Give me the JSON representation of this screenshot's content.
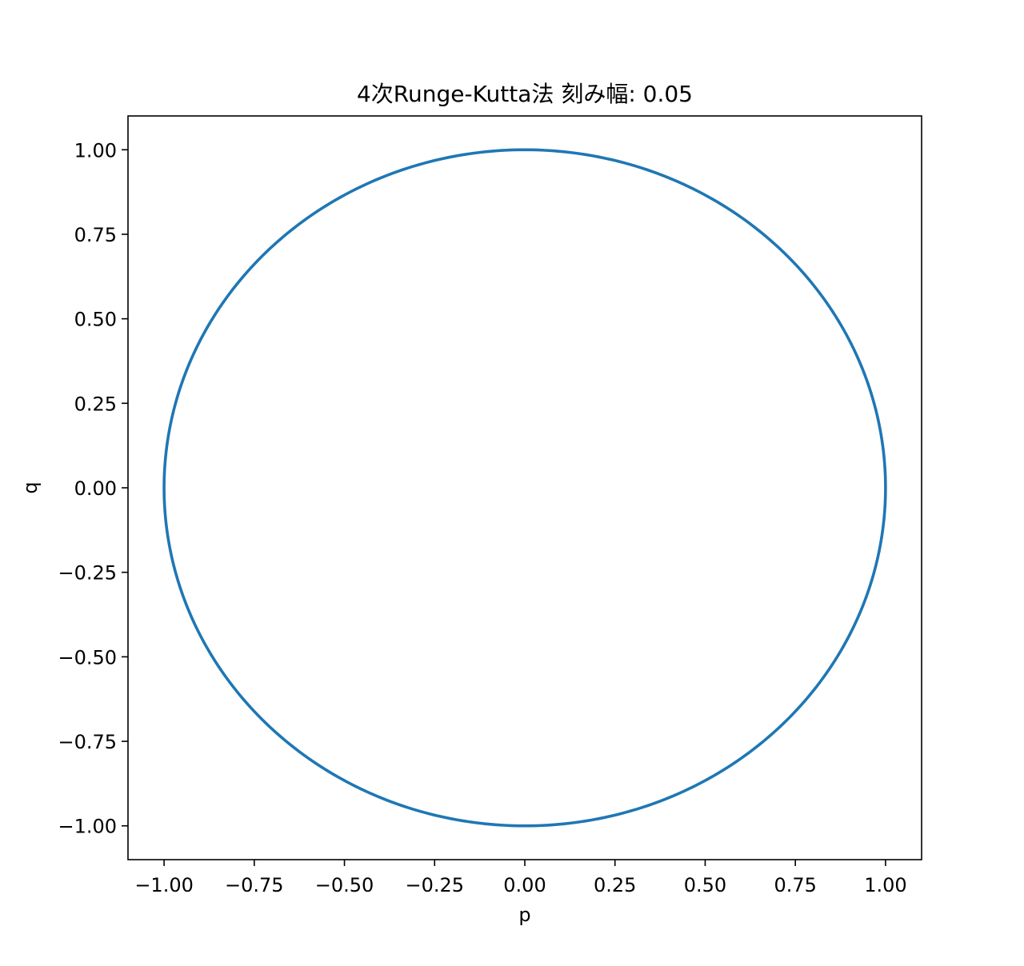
{
  "chart_data": {
    "type": "line",
    "title": "4次Runge-Kutta法 刻み幅: 0.05",
    "xlabel": "p",
    "ylabel": "q",
    "xlim": [
      -1.1,
      1.1
    ],
    "ylim": [
      -1.1,
      1.1
    ],
    "grid": false,
    "legend": "none",
    "x_ticks": [
      -1.0,
      -0.75,
      -0.5,
      -0.25,
      0.0,
      0.25,
      0.5,
      0.75,
      1.0
    ],
    "x_tick_labels": [
      "−1.00",
      "−0.75",
      "−0.50",
      "−0.25",
      "0.00",
      "0.25",
      "0.50",
      "0.75",
      "1.00"
    ],
    "y_ticks": [
      -1.0,
      -0.75,
      -0.5,
      -0.25,
      0.0,
      0.25,
      0.5,
      0.75,
      1.0
    ],
    "y_tick_labels": [
      "−1.00",
      "−0.75",
      "−0.50",
      "−0.25",
      "0.00",
      "0.25",
      "0.50",
      "0.75",
      "1.00"
    ],
    "series": [
      {
        "color": "#1f77b4",
        "shape": "closed orbit",
        "center": [
          0.0,
          0.0
        ],
        "radius": 1.0,
        "x": [
          1.0,
          0.966,
          0.866,
          0.707,
          0.5,
          0.259,
          0.0,
          -0.259,
          -0.5,
          -0.707,
          -0.866,
          -0.966,
          -1.0,
          -0.966,
          -0.866,
          -0.707,
          -0.5,
          -0.259,
          0.0,
          0.259,
          0.5,
          0.707,
          0.866,
          0.966,
          1.0
        ],
        "y": [
          0.0,
          0.259,
          0.5,
          0.707,
          0.866,
          0.966,
          1.0,
          0.966,
          0.866,
          0.707,
          0.5,
          0.259,
          0.0,
          -0.259,
          -0.5,
          -0.707,
          -0.866,
          -0.966,
          -1.0,
          -0.966,
          -0.866,
          -0.707,
          -0.5,
          -0.259,
          0.0
        ]
      }
    ]
  }
}
